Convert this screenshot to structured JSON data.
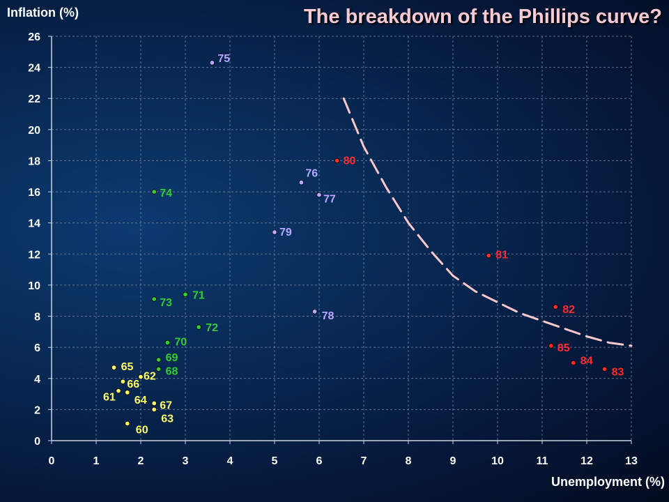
{
  "chart_data": {
    "type": "scatter",
    "title": "The breakdown of the Phillips curve?",
    "xlabel": "Unemployment (%)",
    "ylabel": "Inflation (%)",
    "xlim": [
      0,
      13
    ],
    "ylim": [
      0,
      26
    ],
    "xticks": [
      "0",
      "1",
      "2",
      "3",
      "4",
      "5",
      "6",
      "7",
      "8",
      "9",
      "10",
      "11",
      "12",
      "13"
    ],
    "yticks": [
      "0",
      "2",
      "4",
      "6",
      "8",
      "10",
      "12",
      "14",
      "16",
      "18",
      "20",
      "22",
      "24",
      "26"
    ],
    "grid": true,
    "series": [
      {
        "color": "#ffff66",
        "points": [
          {
            "label": "60",
            "x": 1.7,
            "y": 1.1
          },
          {
            "label": "61",
            "x": 1.5,
            "y": 3.2
          },
          {
            "label": "62",
            "x": 2.0,
            "y": 4.1
          },
          {
            "label": "63",
            "x": 2.3,
            "y": 2.0
          },
          {
            "label": "64",
            "x": 1.7,
            "y": 3.1
          },
          {
            "label": "65",
            "x": 1.4,
            "y": 4.7
          },
          {
            "label": "66",
            "x": 1.6,
            "y": 3.8
          },
          {
            "label": "67",
            "x": 2.3,
            "y": 2.4
          }
        ]
      },
      {
        "color": "#33cc33",
        "points": [
          {
            "label": "68",
            "x": 2.4,
            "y": 4.6
          },
          {
            "label": "69",
            "x": 2.4,
            "y": 5.2
          },
          {
            "label": "70",
            "x": 2.6,
            "y": 6.3
          },
          {
            "label": "71",
            "x": 3.0,
            "y": 9.4
          },
          {
            "label": "72",
            "x": 3.3,
            "y": 7.3
          },
          {
            "label": "73",
            "x": 2.3,
            "y": 9.1
          },
          {
            "label": "74",
            "x": 2.3,
            "y": 16.0
          }
        ]
      },
      {
        "color": "#b9a8ff",
        "points": [
          {
            "label": "75",
            "x": 3.6,
            "y": 24.3
          },
          {
            "label": "76",
            "x": 5.6,
            "y": 16.6
          },
          {
            "label": "77",
            "x": 6.0,
            "y": 15.8
          },
          {
            "label": "78",
            "x": 5.9,
            "y": 8.3
          },
          {
            "label": "79",
            "x": 5.0,
            "y": 13.4
          }
        ]
      },
      {
        "color": "#ff2a2a",
        "points": [
          {
            "label": "80",
            "x": 6.4,
            "y": 18.0
          },
          {
            "label": "81",
            "x": 9.8,
            "y": 11.9
          },
          {
            "label": "82",
            "x": 11.3,
            "y": 8.6
          },
          {
            "label": "83",
            "x": 12.4,
            "y": 4.6
          },
          {
            "label": "84",
            "x": 11.7,
            "y": 5.0
          },
          {
            "label": "85",
            "x": 11.2,
            "y": 6.1
          }
        ]
      }
    ],
    "curve": {
      "style": "dashed",
      "color": "#f8c8cc",
      "points": [
        [
          6.55,
          22.0
        ],
        [
          7.0,
          18.9
        ],
        [
          7.5,
          16.3
        ],
        [
          8.0,
          14.0
        ],
        [
          8.5,
          12.2
        ],
        [
          9.0,
          10.6
        ],
        [
          9.5,
          9.6
        ],
        [
          10.0,
          8.9
        ],
        [
          10.5,
          8.2
        ],
        [
          11.0,
          7.7
        ],
        [
          11.5,
          7.2
        ],
        [
          12.0,
          6.7
        ],
        [
          12.5,
          6.3
        ],
        [
          13.0,
          6.1
        ]
      ]
    }
  }
}
